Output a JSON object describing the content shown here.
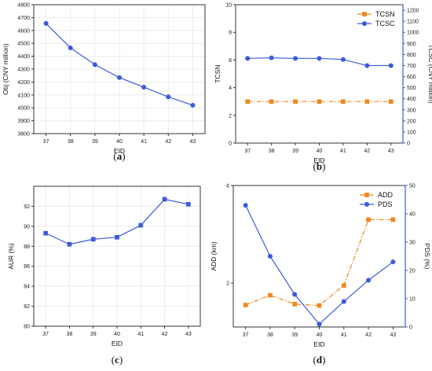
{
  "colors": {
    "blue": "#3b5bdb",
    "orange": "#f0861a",
    "axis": "#333333"
  },
  "panels": [
    {
      "label": "a"
    },
    {
      "label": "b"
    },
    {
      "label": "c"
    },
    {
      "label": "d"
    }
  ],
  "chart_data": [
    {
      "id": "a",
      "type": "line",
      "x": [
        "37",
        "38",
        "39",
        "40",
        "41",
        "42",
        "43"
      ],
      "xlabel": "EID",
      "ylabel": "Obj (CNY million)",
      "ylim": [
        3800,
        4800
      ],
      "yticks": [
        3800,
        3900,
        4000,
        4100,
        4200,
        4300,
        4400,
        4500,
        4600,
        4700,
        4800
      ],
      "grid": true,
      "series": [
        {
          "axis": "left",
          "color": "blue",
          "marker": "circle",
          "dash": "solid",
          "values": [
            4655,
            4465,
            4335,
            4235,
            4160,
            4085,
            4020
          ]
        }
      ]
    },
    {
      "id": "b",
      "type": "line",
      "x": [
        "37",
        "38",
        "39",
        "40",
        "41",
        "42",
        "43"
      ],
      "xlabel": "EID",
      "ylabel": "TCSN",
      "ylim": [
        0,
        10
      ],
      "yticks": [
        0,
        2,
        4,
        6,
        8,
        10
      ],
      "ylabel_right": "TCSC (CNY million)",
      "ylim_right": [
        0,
        1250
      ],
      "yticks_right": [
        0,
        100,
        200,
        300,
        400,
        500,
        600,
        700,
        800,
        900,
        1000,
        1100,
        1200
      ],
      "grid": false,
      "legend_position": "top-right",
      "series": [
        {
          "name": "TCSN",
          "axis": "left",
          "color": "orange",
          "marker": "square",
          "dash": "dashdot",
          "values": [
            3,
            3,
            3,
            3,
            3,
            3,
            3
          ]
        },
        {
          "name": "TCSC",
          "axis": "right",
          "color": "blue",
          "marker": "circle",
          "dash": "solid",
          "values": [
            765,
            770,
            765,
            765,
            755,
            700,
            700
          ]
        }
      ]
    },
    {
      "id": "c",
      "type": "line",
      "x": [
        "37",
        "38",
        "39",
        "40",
        "41",
        "42",
        "43"
      ],
      "xlabel": "EID",
      "ylabel": "AUR (%)",
      "ylim": [
        80,
        94
      ],
      "yticks": [
        80,
        82,
        84,
        86,
        88,
        90,
        92
      ],
      "grid": true,
      "series": [
        {
          "axis": "left",
          "color": "blue",
          "marker": "square",
          "dash": "solid",
          "values": [
            89.3,
            88.2,
            88.7,
            88.9,
            90.1,
            92.7,
            92.2
          ]
        }
      ]
    },
    {
      "id": "d",
      "type": "line",
      "x": [
        "37",
        "38",
        "39",
        "40",
        "41",
        "42",
        "43"
      ],
      "xlabel": "EID",
      "ylabel": "ADD (km)",
      "ylim": [
        1.1,
        4
      ],
      "yticks": [
        2,
        4
      ],
      "ylabel_right": "PDS (%)",
      "ylim_right": [
        0,
        50
      ],
      "yticks_right": [
        0,
        10,
        20,
        30,
        40,
        50
      ],
      "grid": false,
      "legend_position": "top-right",
      "series": [
        {
          "name": "ADD",
          "axis": "left",
          "color": "orange",
          "marker": "square",
          "dash": "dashdot",
          "values": [
            1.55,
            1.75,
            1.57,
            1.54,
            1.95,
            3.3,
            3.3
          ]
        },
        {
          "name": "PDS",
          "axis": "right",
          "color": "blue",
          "marker": "circle",
          "dash": "solid",
          "values": [
            43,
            25,
            11.5,
            1,
            9,
            16.5,
            23
          ]
        }
      ]
    }
  ]
}
